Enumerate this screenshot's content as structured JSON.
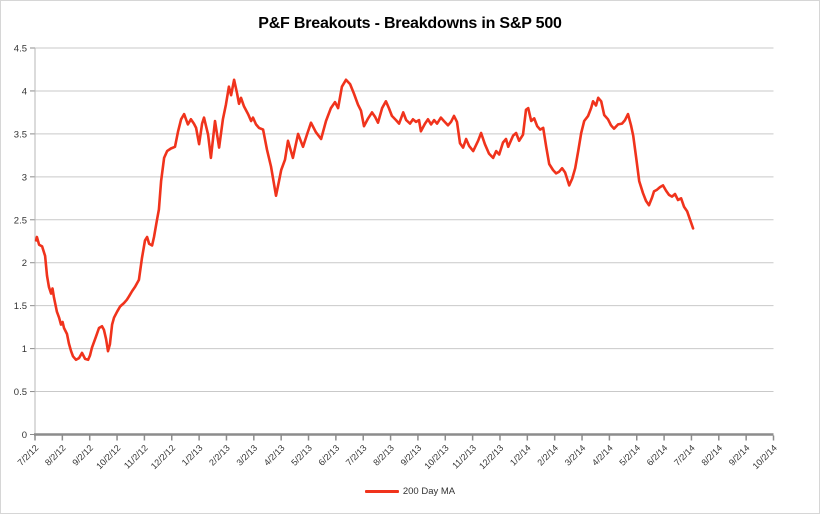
{
  "title": "P&F Breakouts - Breakdowns in S&P 500",
  "legend": {
    "series_label": "200 Day MA"
  },
  "colors": {
    "series": "#f0331c",
    "grid": "#c9c9c9",
    "axis_left": "#b7b7b7",
    "axis_bottom": "#8c8c8c",
    "tick": "#8c8c8c",
    "tick_text": "#333333",
    "background": "#ffffff"
  },
  "chart_data": {
    "type": "line",
    "title": "P&F Breakouts - Breakdowns in S&P 500",
    "xlabel": "",
    "ylabel": "",
    "grid": "horizontal",
    "legend_position": "bottom-center",
    "ylim": [
      0,
      4.5
    ],
    "y_tick_labels": [
      "0",
      "0.5",
      "1",
      "1.5",
      "2",
      "2.5",
      "3",
      "3.5",
      "4",
      "4.5"
    ],
    "x_tick_labels": [
      "7/2/12",
      "8/2/12",
      "9/2/12",
      "10/2/12",
      "11/2/12",
      "12/2/12",
      "1/2/13",
      "2/2/13",
      "3/2/13",
      "4/2/13",
      "5/2/13",
      "6/2/13",
      "7/2/13",
      "8/2/13",
      "9/2/13",
      "10/2/13",
      "11/2/13",
      "12/2/13",
      "1/2/14",
      "2/2/14",
      "3/2/14",
      "4/2/14",
      "5/2/14",
      "6/2/14",
      "7/2/14",
      "8/2/14",
      "9/2/14",
      "10/2/14"
    ],
    "series": [
      {
        "name": "200 Day MA",
        "x_unit": "months_since_7_2_12",
        "points": [
          [
            0.04,
            2.26
          ],
          [
            0.07,
            2.3
          ],
          [
            0.15,
            2.21
          ],
          [
            0.26,
            2.19
          ],
          [
            0.37,
            2.08
          ],
          [
            0.44,
            1.85
          ],
          [
            0.51,
            1.72
          ],
          [
            0.59,
            1.64
          ],
          [
            0.64,
            1.7
          ],
          [
            0.69,
            1.6
          ],
          [
            0.8,
            1.43
          ],
          [
            0.88,
            1.36
          ],
          [
            0.95,
            1.28
          ],
          [
            1.01,
            1.31
          ],
          [
            1.06,
            1.24
          ],
          [
            1.17,
            1.17
          ],
          [
            1.24,
            1.06
          ],
          [
            1.32,
            0.97
          ],
          [
            1.39,
            0.91
          ],
          [
            1.5,
            0.87
          ],
          [
            1.61,
            0.89
          ],
          [
            1.72,
            0.95
          ],
          [
            1.83,
            0.88
          ],
          [
            1.94,
            0.87
          ],
          [
            2.01,
            0.92
          ],
          [
            2.08,
            1.01
          ],
          [
            2.23,
            1.14
          ],
          [
            2.34,
            1.24
          ],
          [
            2.45,
            1.26
          ],
          [
            2.52,
            1.22
          ],
          [
            2.6,
            1.11
          ],
          [
            2.67,
            0.97
          ],
          [
            2.74,
            1.05
          ],
          [
            2.82,
            1.28
          ],
          [
            2.89,
            1.36
          ],
          [
            3.0,
            1.43
          ],
          [
            3.11,
            1.49
          ],
          [
            3.25,
            1.53
          ],
          [
            3.36,
            1.57
          ],
          [
            3.44,
            1.61
          ],
          [
            3.55,
            1.67
          ],
          [
            3.66,
            1.72
          ],
          [
            3.8,
            1.8
          ],
          [
            3.91,
            2.05
          ],
          [
            4.02,
            2.26
          ],
          [
            4.1,
            2.3
          ],
          [
            4.17,
            2.22
          ],
          [
            4.28,
            2.2
          ],
          [
            4.35,
            2.3
          ],
          [
            4.46,
            2.5
          ],
          [
            4.53,
            2.62
          ],
          [
            4.61,
            2.95
          ],
          [
            4.72,
            3.22
          ],
          [
            4.83,
            3.3
          ],
          [
            4.97,
            3.33
          ],
          [
            5.12,
            3.35
          ],
          [
            5.23,
            3.53
          ],
          [
            5.34,
            3.67
          ],
          [
            5.45,
            3.73
          ],
          [
            5.59,
            3.61
          ],
          [
            5.7,
            3.67
          ],
          [
            5.81,
            3.62
          ],
          [
            5.89,
            3.57
          ],
          [
            6.0,
            3.38
          ],
          [
            6.11,
            3.62
          ],
          [
            6.18,
            3.69
          ],
          [
            6.33,
            3.49
          ],
          [
            6.43,
            3.22
          ],
          [
            6.58,
            3.65
          ],
          [
            6.73,
            3.34
          ],
          [
            6.87,
            3.67
          ],
          [
            6.98,
            3.84
          ],
          [
            7.09,
            4.05
          ],
          [
            7.17,
            3.95
          ],
          [
            7.28,
            4.13
          ],
          [
            7.39,
            3.97
          ],
          [
            7.46,
            3.85
          ],
          [
            7.53,
            3.92
          ],
          [
            7.64,
            3.82
          ],
          [
            7.79,
            3.73
          ],
          [
            7.9,
            3.65
          ],
          [
            7.97,
            3.69
          ],
          [
            8.08,
            3.61
          ],
          [
            8.19,
            3.57
          ],
          [
            8.34,
            3.55
          ],
          [
            8.48,
            3.32
          ],
          [
            8.63,
            3.12
          ],
          [
            8.81,
            2.78
          ],
          [
            8.92,
            2.95
          ],
          [
            9.0,
            3.08
          ],
          [
            9.14,
            3.2
          ],
          [
            9.25,
            3.42
          ],
          [
            9.43,
            3.22
          ],
          [
            9.62,
            3.5
          ],
          [
            9.8,
            3.35
          ],
          [
            9.95,
            3.5
          ],
          [
            10.09,
            3.63
          ],
          [
            10.27,
            3.52
          ],
          [
            10.46,
            3.44
          ],
          [
            10.64,
            3.65
          ],
          [
            10.82,
            3.8
          ],
          [
            10.97,
            3.87
          ],
          [
            11.08,
            3.8
          ],
          [
            11.22,
            4.05
          ],
          [
            11.37,
            4.13
          ],
          [
            11.52,
            4.08
          ],
          [
            11.66,
            3.97
          ],
          [
            11.81,
            3.84
          ],
          [
            11.92,
            3.77
          ],
          [
            12.03,
            3.59
          ],
          [
            12.18,
            3.68
          ],
          [
            12.32,
            3.75
          ],
          [
            12.43,
            3.7
          ],
          [
            12.54,
            3.63
          ],
          [
            12.69,
            3.8
          ],
          [
            12.83,
            3.88
          ],
          [
            12.94,
            3.8
          ],
          [
            13.05,
            3.71
          ],
          [
            13.2,
            3.66
          ],
          [
            13.31,
            3.62
          ],
          [
            13.46,
            3.75
          ],
          [
            13.57,
            3.66
          ],
          [
            13.71,
            3.62
          ],
          [
            13.82,
            3.67
          ],
          [
            13.93,
            3.64
          ],
          [
            14.04,
            3.66
          ],
          [
            14.11,
            3.53
          ],
          [
            14.26,
            3.62
          ],
          [
            14.37,
            3.67
          ],
          [
            14.48,
            3.61
          ],
          [
            14.59,
            3.66
          ],
          [
            14.7,
            3.62
          ],
          [
            14.84,
            3.69
          ],
          [
            14.95,
            3.65
          ],
          [
            15.1,
            3.6
          ],
          [
            15.21,
            3.64
          ],
          [
            15.32,
            3.71
          ],
          [
            15.43,
            3.64
          ],
          [
            15.54,
            3.39
          ],
          [
            15.65,
            3.34
          ],
          [
            15.76,
            3.44
          ],
          [
            15.87,
            3.36
          ],
          [
            16.02,
            3.3
          ],
          [
            16.2,
            3.42
          ],
          [
            16.31,
            3.51
          ],
          [
            16.45,
            3.38
          ],
          [
            16.6,
            3.27
          ],
          [
            16.75,
            3.22
          ],
          [
            16.86,
            3.3
          ],
          [
            16.97,
            3.26
          ],
          [
            17.11,
            3.4
          ],
          [
            17.22,
            3.44
          ],
          [
            17.3,
            3.35
          ],
          [
            17.48,
            3.48
          ],
          [
            17.59,
            3.51
          ],
          [
            17.7,
            3.42
          ],
          [
            17.84,
            3.49
          ],
          [
            17.95,
            3.78
          ],
          [
            18.03,
            3.8
          ],
          [
            18.14,
            3.65
          ],
          [
            18.25,
            3.68
          ],
          [
            18.36,
            3.59
          ],
          [
            18.47,
            3.55
          ],
          [
            18.58,
            3.57
          ],
          [
            18.69,
            3.35
          ],
          [
            18.8,
            3.15
          ],
          [
            18.94,
            3.08
          ],
          [
            19.05,
            3.04
          ],
          [
            19.16,
            3.06
          ],
          [
            19.27,
            3.1
          ],
          [
            19.38,
            3.05
          ],
          [
            19.53,
            2.9
          ],
          [
            19.64,
            2.98
          ],
          [
            19.75,
            3.1
          ],
          [
            19.86,
            3.3
          ],
          [
            19.97,
            3.51
          ],
          [
            20.08,
            3.65
          ],
          [
            20.22,
            3.71
          ],
          [
            20.33,
            3.8
          ],
          [
            20.4,
            3.88
          ],
          [
            20.51,
            3.83
          ],
          [
            20.59,
            3.92
          ],
          [
            20.7,
            3.88
          ],
          [
            20.81,
            3.72
          ],
          [
            20.95,
            3.67
          ],
          [
            21.06,
            3.6
          ],
          [
            21.17,
            3.56
          ],
          [
            21.32,
            3.61
          ],
          [
            21.46,
            3.62
          ],
          [
            21.57,
            3.66
          ],
          [
            21.68,
            3.73
          ],
          [
            21.79,
            3.6
          ],
          [
            21.87,
            3.48
          ],
          [
            21.98,
            3.22
          ],
          [
            22.09,
            2.95
          ],
          [
            22.23,
            2.81
          ],
          [
            22.34,
            2.72
          ],
          [
            22.45,
            2.67
          ],
          [
            22.56,
            2.76
          ],
          [
            22.63,
            2.83
          ],
          [
            22.74,
            2.85
          ],
          [
            22.85,
            2.88
          ],
          [
            22.96,
            2.9
          ],
          [
            23.07,
            2.84
          ],
          [
            23.18,
            2.79
          ],
          [
            23.29,
            2.77
          ],
          [
            23.4,
            2.8
          ],
          [
            23.51,
            2.73
          ],
          [
            23.62,
            2.75
          ],
          [
            23.73,
            2.65
          ],
          [
            23.84,
            2.6
          ],
          [
            23.95,
            2.5
          ],
          [
            24.06,
            2.4
          ]
        ]
      }
    ]
  }
}
